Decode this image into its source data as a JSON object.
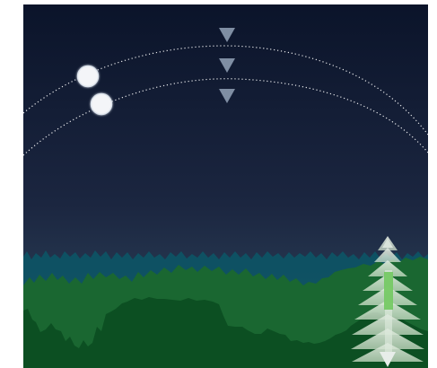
{
  "scene": {
    "name": "night-forest-sun-path-illustration",
    "sky": {
      "top_color": "#0B142A",
      "mid_color": "#1B2640",
      "horizon_color": "#324A61"
    },
    "paths": {
      "color": "#FFFFFF",
      "style": "dotted",
      "count": 2
    },
    "markers": {
      "color": "#7F8EA3",
      "count": 3,
      "shape": "triangle-down"
    },
    "bodies": [
      {
        "name": "moon-upper",
        "color": "#F4F5F8"
      },
      {
        "name": "moon-lower",
        "color": "#F4F5F8"
      }
    ],
    "layers": [
      {
        "name": "distant-teal-ridge",
        "color": "#0E5364"
      },
      {
        "name": "mid-green-forest",
        "color": "#1A6731"
      },
      {
        "name": "front-dark-forest",
        "color": "#0C4F22"
      }
    ],
    "tree": {
      "name": "pine-tree",
      "color": "#EAF1E5",
      "accent": "#7FD46A"
    }
  }
}
